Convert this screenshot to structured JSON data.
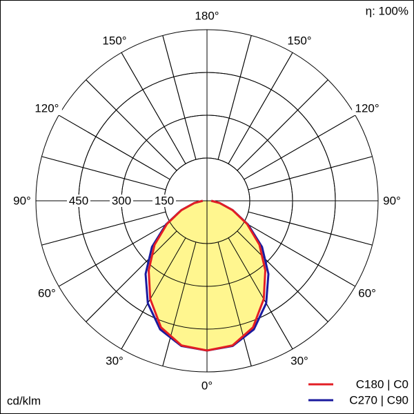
{
  "chart_data": {
    "type": "polar",
    "efficiency_label": "η: 100%",
    "unit_label": "cd/klm",
    "theta": [
      0,
      10,
      20,
      30,
      40,
      50,
      60,
      70,
      80,
      90
    ],
    "series": [
      {
        "name": "C180 | C0",
        "color": "#e31e24",
        "fill": "#fff68f",
        "values": [
          525,
          515,
          472,
          398,
          318,
          240,
          162,
          95,
          45,
          15
        ]
      },
      {
        "name": "C270 | C90",
        "color": "#1a1a9e",
        "values": [
          525,
          517,
          480,
          415,
          335,
          252,
          166,
          96,
          45,
          15
        ]
      }
    ],
    "rlim": [
      0,
      600
    ],
    "rticks": [
      150,
      300,
      450
    ],
    "angle_ticks": [
      {
        "value": 0,
        "label": "0°"
      },
      {
        "value": 30,
        "label": "30°"
      },
      {
        "value": 60,
        "label": "60°"
      },
      {
        "value": 90,
        "label": "90°"
      },
      {
        "value": 120,
        "label": "120°"
      },
      {
        "value": 150,
        "label": "150°"
      },
      {
        "value": 180,
        "label": "180°"
      }
    ]
  }
}
